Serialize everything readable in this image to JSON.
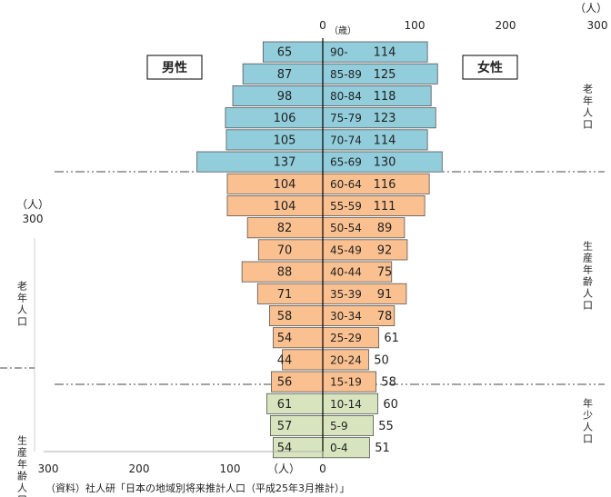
{
  "chart_data": {
    "type": "bar",
    "title": "",
    "source": "（資料）社人研「日本の地域別将来推計人口（平成25年3月推計）」",
    "x_top_ticks": [
      "0",
      "100",
      "200",
      "300"
    ],
    "x_bottom_ticks": [
      "300",
      "200",
      "100",
      "0"
    ],
    "unit_top": "（人）",
    "unit_age": "（歳）",
    "unit_bottom": "（人）",
    "male_label": "男性",
    "female_label": "女性",
    "left_ghost_unit": "（人）",
    "left_ghost_tick": "300",
    "left_ghost_group_1": "老年人口",
    "left_ghost_group_2": "生産年齢人口",
    "xlim": [
      0,
      300
    ],
    "groups": [
      {
        "name": "老年人口",
        "color": "#92cddc",
        "age_range": [
          0,
          5
        ]
      },
      {
        "name": "生産年齢人口",
        "color": "#fac090",
        "age_range": [
          6,
          15
        ]
      },
      {
        "name": "年少人口",
        "color": "#d7e4bd",
        "age_range": [
          16,
          18
        ]
      }
    ],
    "categories": [
      "90-",
      "85-89",
      "80-84",
      "75-79",
      "70-74",
      "65-69",
      "60-64",
      "55-59",
      "50-54",
      "45-49",
      "40-44",
      "35-39",
      "30-34",
      "25-29",
      "20-24",
      "15-19",
      "10-14",
      "5-9",
      "0-4"
    ],
    "series": [
      {
        "name": "男性",
        "values": [
          65,
          87,
          98,
          106,
          105,
          137,
          104,
          104,
          82,
          70,
          88,
          71,
          58,
          54,
          44,
          56,
          61,
          57,
          54
        ]
      },
      {
        "name": "女性",
        "values": [
          114,
          125,
          118,
          123,
          114,
          130,
          116,
          111,
          89,
          92,
          75,
          91,
          78,
          61,
          50,
          58,
          60,
          55,
          51
        ]
      }
    ],
    "male_value_labels": [
      "65",
      "87",
      "98",
      "106",
      "105",
      "137",
      "104",
      "104",
      "82",
      "70",
      "88",
      "71",
      "58",
      "54",
      "44",
      "56",
      "61",
      "57",
      "54"
    ],
    "female_value_labels": [
      "114",
      "125",
      "118",
      "123",
      "114",
      "130",
      "116",
      "111",
      "89",
      "92",
      "75",
      "91",
      "78",
      "61",
      "50",
      "58",
      "60",
      "55",
      "51"
    ]
  }
}
